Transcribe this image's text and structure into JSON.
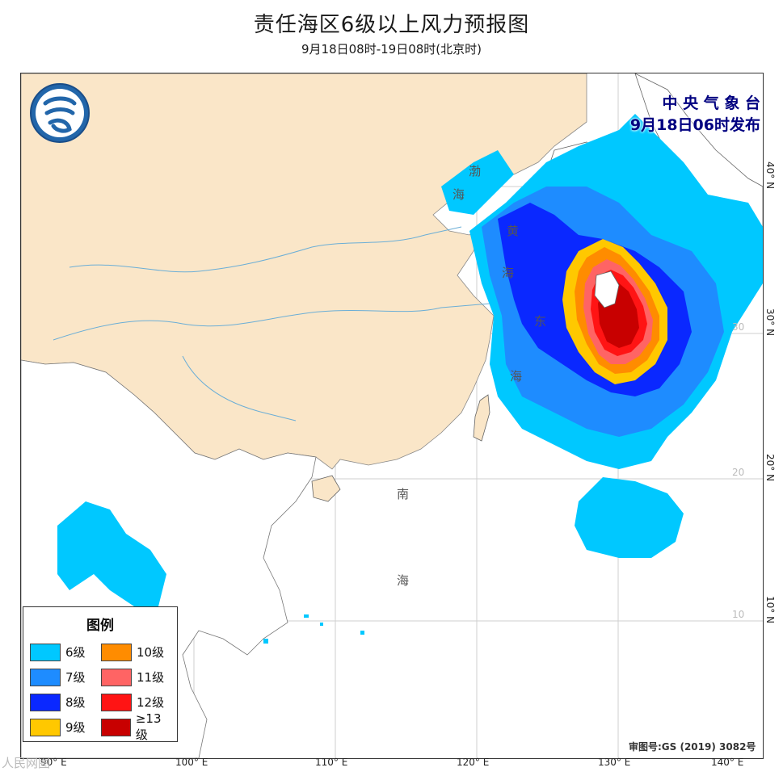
{
  "title": "责任海区6级以上风力预报图",
  "subtitle": "9月18日08时-19日08时(北京时)",
  "issuer": {
    "line1": "中 央 气 象 台",
    "line2": "9月18日06时发布"
  },
  "legend": {
    "title": "图例",
    "items": [
      {
        "label": "6级",
        "color": "#00c8ff"
      },
      {
        "label": "10级",
        "color": "#ff8c00"
      },
      {
        "label": "7级",
        "color": "#1e8cff"
      },
      {
        "label": "11级",
        "color": "#ff6464"
      },
      {
        "label": "8级",
        "color": "#0a28ff"
      },
      {
        "label": "12级",
        "color": "#ff1414"
      },
      {
        "label": "9级",
        "color": "#ffc800"
      },
      {
        "label": "≥13级",
        "color": "#c80000"
      }
    ]
  },
  "sea_labels": [
    "渤",
    "海",
    "黄",
    "海",
    "东",
    "海",
    "南",
    "海"
  ],
  "lon_labels": [
    "90° E",
    "100° E",
    "110° E",
    "120° E",
    "130° E",
    "140° E"
  ],
  "lat_labels": [
    "40° N",
    "30° N",
    "20° N",
    "10° N"
  ],
  "grid_labels": [
    "30",
    "20",
    "10"
  ],
  "approval": "审图号:GS (2019) 3082号",
  "watermark": "人民网图",
  "colors": {
    "land": "#fae6c8",
    "ocean": "#ffffff",
    "issuer_text": "#000080"
  }
}
